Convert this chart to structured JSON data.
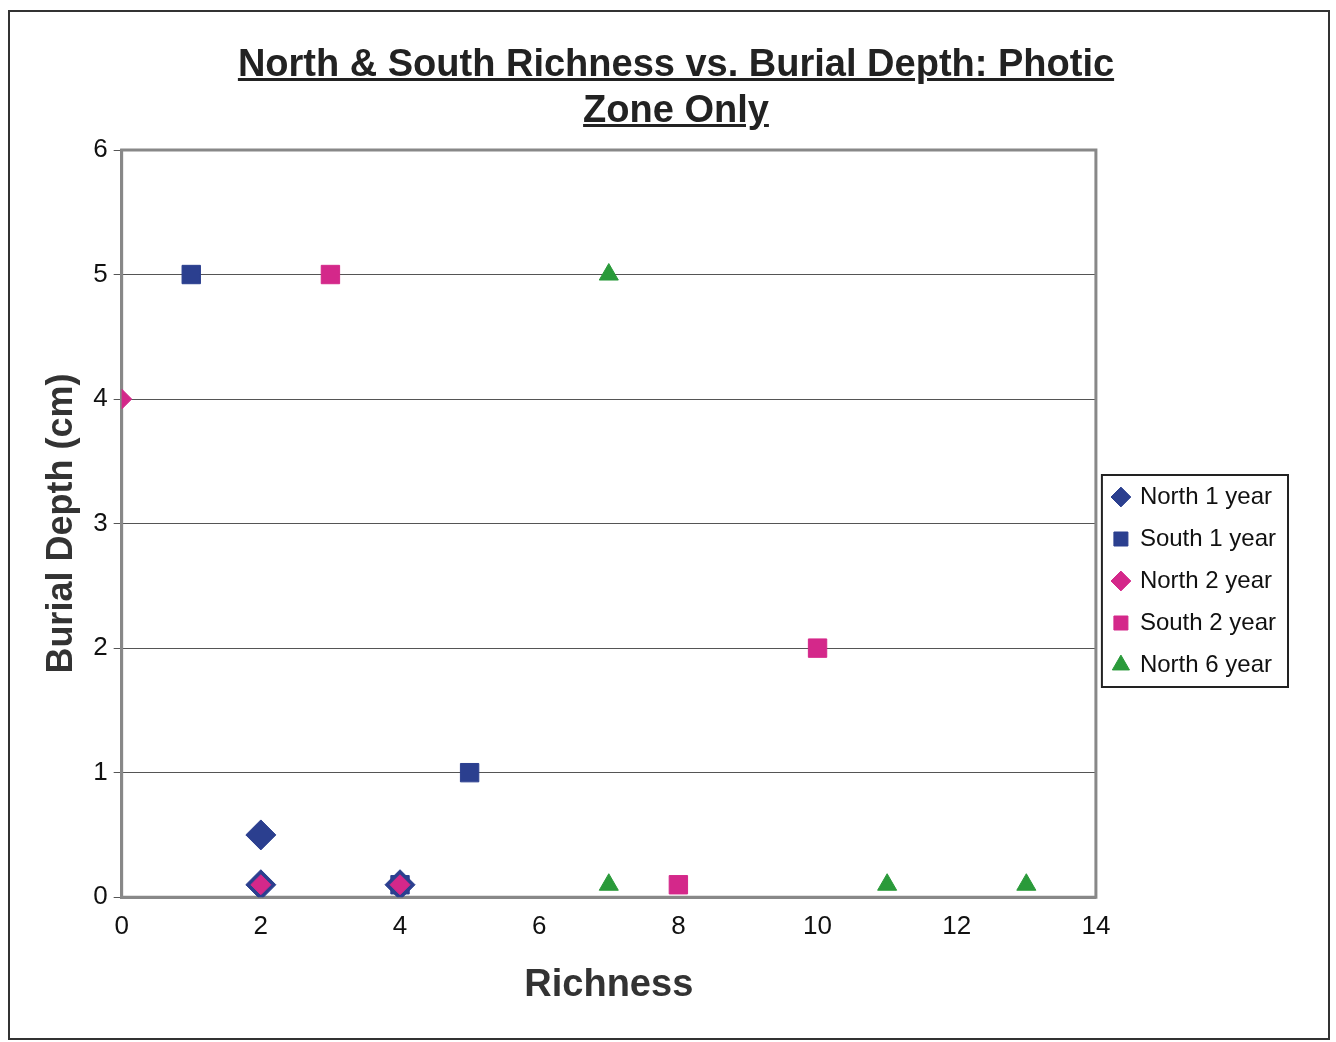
{
  "chart_data": {
    "type": "scatter",
    "title": "North & South Richness vs. Burial Depth: Photic Zone Only",
    "xlabel": "Richness",
    "ylabel": "Burial Depth (cm)",
    "xlim": [
      0,
      14
    ],
    "xticks": [
      0,
      2,
      4,
      6,
      8,
      10,
      12,
      14
    ],
    "ylim": [
      0,
      6
    ],
    "yticks": [
      0,
      1,
      2,
      3,
      4,
      5,
      6
    ],
    "grid": "y",
    "legend": "right",
    "series": [
      {
        "name": "North 1 year",
        "color": "#2b3f8f",
        "marker": "diamond",
        "x": [
          2,
          2,
          4
        ],
        "values": [
          0.5,
          0.1,
          0.1
        ]
      },
      {
        "name": "South 1 year",
        "color": "#2b3f8f",
        "marker": "square",
        "x": [
          1,
          5,
          4
        ],
        "values": [
          5,
          1,
          0.1
        ]
      },
      {
        "name": "North 2 year",
        "color": "#d4288a",
        "marker": "diamond",
        "x": [
          0,
          2,
          4
        ],
        "values": [
          4,
          0.1,
          0.1
        ]
      },
      {
        "name": "South 2 year",
        "color": "#d4288a",
        "marker": "square",
        "x": [
          3,
          10,
          8
        ],
        "values": [
          5,
          2,
          0.1
        ]
      },
      {
        "name": "North 6 year",
        "color": "#2a9a3a",
        "marker": "triangle",
        "x": [
          7,
          7,
          11,
          13
        ],
        "values": [
          5,
          0.1,
          0.1,
          0.1
        ]
      }
    ]
  }
}
